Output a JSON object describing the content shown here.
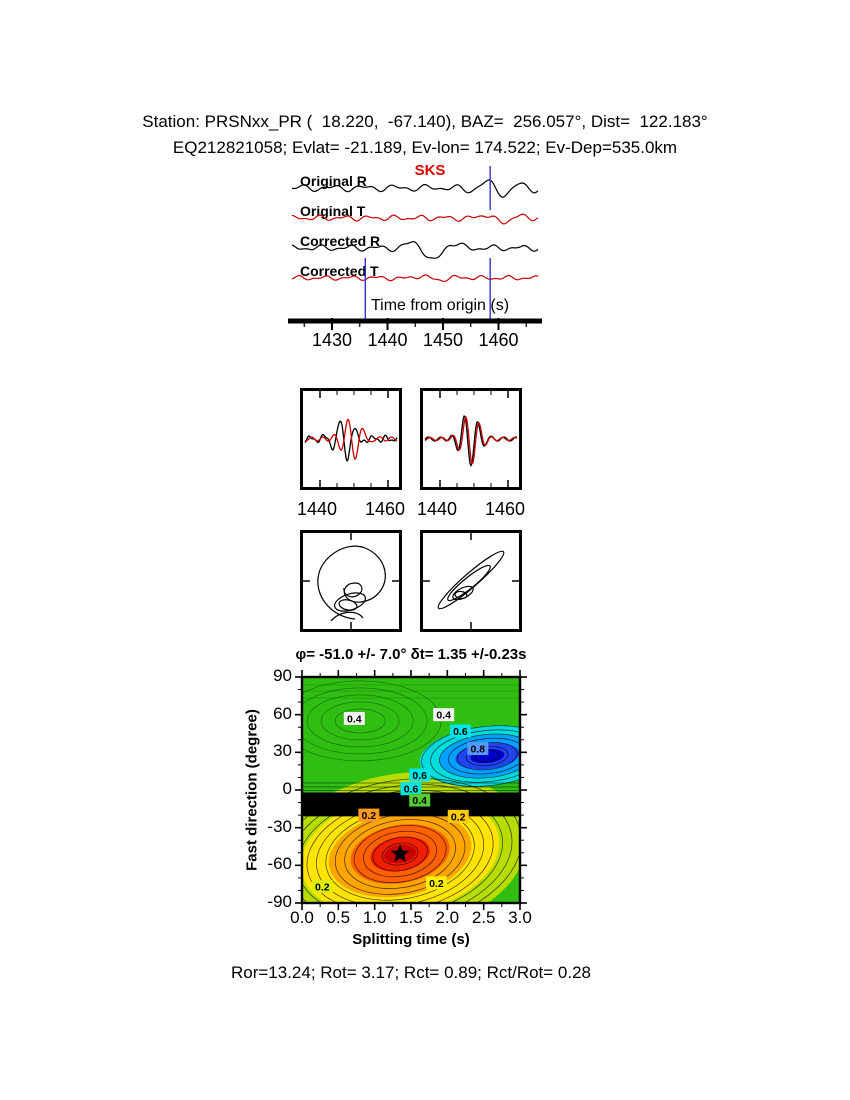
{
  "header": {
    "line1": "Station: PRSNxx_PR (  18.220,  -67.140), BAZ=  256.057°, Dist=  122.183°",
    "line2": "EQ212821058; Evlat= -21.189, Ev-lon= 174.522; Ev-Dep=535.0km"
  },
  "waveform_panel": {
    "phase_label": "SKS",
    "trace_labels": [
      "Original R",
      "Original T",
      "Corrected R",
      "Corrected T"
    ],
    "trace_colors": [
      "#000000",
      "#cc0000",
      "#000000",
      "#cc0000"
    ],
    "axis_label": "Time from origin (s)",
    "x_ticks": [
      "1430",
      "1440",
      "1450",
      "1460"
    ],
    "window_markers": [
      1436,
      1458.5
    ],
    "marker_color": "#3333cc"
  },
  "zoom_panels": {
    "x_ticks": [
      "1440",
      "1460"
    ]
  },
  "contour_chart": {
    "title": "φ= -51.0 +/- 7.0° δt= 1.35 +/-0.23s",
    "xlabel": "Splitting time (s)",
    "ylabel": "Fast direction (degree)",
    "x_ticks": [
      "0.0",
      "0.5",
      "1.0",
      "1.5",
      "2.0",
      "2.5",
      "3.0"
    ],
    "y_ticks": [
      "90",
      "60",
      "30",
      "0",
      "-30",
      "-60",
      "-90"
    ],
    "xlim": [
      0,
      3
    ],
    "ylim": [
      -90,
      90
    ],
    "star": {
      "t": 1.35,
      "phi": -51
    },
    "colors": {
      "base": "#2fbe11",
      "band": "#000000",
      "low": [
        "#b6dc00",
        "#ffe400",
        "#ffa500",
        "#ff6000",
        "#ee2000",
        "#c80000"
      ],
      "high": [
        "#00dcdc",
        "#00a0ff",
        "#2244ee",
        "#0000c8"
      ]
    },
    "labels": [
      {
        "text": "0.4",
        "t": 0.72,
        "phi": 57,
        "bg": "#f2f2f2"
      },
      {
        "text": "0.4",
        "t": 1.95,
        "phi": 60,
        "bg": "#f2f2f2"
      },
      {
        "text": "0.6",
        "t": 2.18,
        "phi": 47,
        "bg": "#00e5e5"
      },
      {
        "text": "0.8",
        "t": 2.42,
        "phi": 33,
        "bg": "#5599ff"
      },
      {
        "text": "0.6",
        "t": 1.62,
        "phi": 12,
        "bg": "#00e5e5"
      },
      {
        "text": "0.6",
        "t": 1.5,
        "phi": 1,
        "bg": "#00e5e5"
      },
      {
        "text": "0.4",
        "t": 1.62,
        "phi": -8,
        "bg": "#55cc33"
      },
      {
        "text": "0.2",
        "t": 0.92,
        "phi": -20,
        "bg": "#ff9922"
      },
      {
        "text": "0.2",
        "t": 2.15,
        "phi": -21,
        "bg": "#ffcc00"
      },
      {
        "text": "0.2",
        "t": 0.28,
        "phi": -77,
        "bg": "#ddee00"
      },
      {
        "text": "0.2",
        "t": 1.85,
        "phi": -74,
        "bg": "#ffee00"
      }
    ]
  },
  "footer": {
    "text": "Ror=13.24; Rot= 3.17; Rct= 0.89; Rct/Rot= 0.28",
    "values": {
      "Ror": 13.24,
      "Rot": 3.17,
      "Rct": 0.89,
      "Rct_over_Rot": 0.28
    }
  },
  "chart_data": [
    {
      "type": "line",
      "title": "Radial/transverse waveforms before and after splitting correction",
      "xlabel": "Time from origin (s)",
      "x_ticks": [
        1430,
        1440,
        1450,
        1460
      ],
      "series": [
        {
          "name": "Original R"
        },
        {
          "name": "Original T"
        },
        {
          "name": "Corrected R"
        },
        {
          "name": "Corrected T"
        }
      ],
      "phase_marker": "SKS",
      "analysis_window_s": [
        1436,
        1458.5
      ]
    },
    {
      "type": "line",
      "title": "Windowed fast/slow waveform pairs (before / after correction)",
      "x_ticks": [
        1440,
        1460
      ]
    },
    {
      "type": "scatter",
      "title": "Particle motion before (left) and after (right) correction"
    },
    {
      "type": "heatmap",
      "title": "φ= -51.0 +/- 7.0° δt= 1.35 +/-0.23s",
      "xlabel": "Splitting time (s)",
      "ylabel": "Fast direction (degree)",
      "xlim": [
        0,
        3
      ],
      "ylim": [
        -90,
        90
      ],
      "x_ticks": [
        0.0,
        0.5,
        1.0,
        1.5,
        2.0,
        2.5,
        3.0
      ],
      "y_ticks": [
        90,
        60,
        30,
        0,
        -30,
        -60,
        -90
      ],
      "best_fit": {
        "fast_direction_deg": -51.0,
        "fast_direction_err_deg": 7.0,
        "delay_time_s": 1.35,
        "delay_time_err_s": 0.23
      },
      "minimum_marker": {
        "x": 1.35,
        "y": -51
      },
      "labeled_contour_levels": [
        0.2,
        0.4,
        0.6,
        0.8
      ],
      "grid": false,
      "legend": "none"
    }
  ]
}
